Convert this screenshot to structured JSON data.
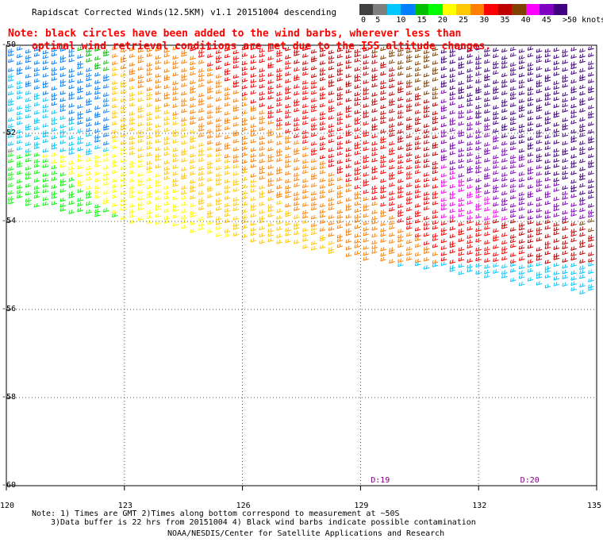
{
  "title": "Rapidscat Corrected Winds(12.5KM) v1.1 20151004 descending",
  "note": {
    "line1": "Note: black circles have been added to the wind barbs, wherever less than",
    "line2": "optimal wind retrieval conditions are met due to the ISS altitude changes."
  },
  "legend": {
    "labels": [
      "0",
      "5",
      "10",
      "15",
      "20",
      "25",
      "30",
      "35",
      "40",
      "45",
      ">50 knots"
    ],
    "colors": [
      "#404040",
      "#7f7f7f",
      "#00c8ff",
      "#0080ff",
      "#00c000",
      "#00ff00",
      "#ffff00",
      "#ffc800",
      "#ff8000",
      "#ff0000",
      "#c00000",
      "#804000",
      "#ff00ff",
      "#8000c0",
      "#400080"
    ]
  },
  "chart_data": {
    "type": "map",
    "x": [
      120,
      123,
      126,
      129,
      132,
      135
    ],
    "x_labels": [
      "120",
      "123",
      "126",
      "129",
      "132",
      "135"
    ],
    "y": [
      -50,
      -52,
      -54,
      -56,
      -58,
      -60
    ],
    "y_labels": [
      "-50",
      "-52",
      "-54",
      "-56",
      "-58",
      "-60"
    ],
    "xlim": [
      120,
      135
    ],
    "ylim": [
      -60,
      -50
    ],
    "grid": true,
    "passes": [
      {
        "label": "D:19",
        "lon": 129.5
      },
      {
        "label": "D:20",
        "lon": 133.3
      }
    ]
  },
  "footer": {
    "notes1": "Note: 1) Times are GMT 2)Times along bottom correspond to measurement at ~50S",
    "notes2": "3)Data buffer is 22 hrs from 20151004 4) Black wind barbs indicate possible contamination",
    "credit": "NOAA/NESDIS/Center for Satellite Applications and Research"
  }
}
